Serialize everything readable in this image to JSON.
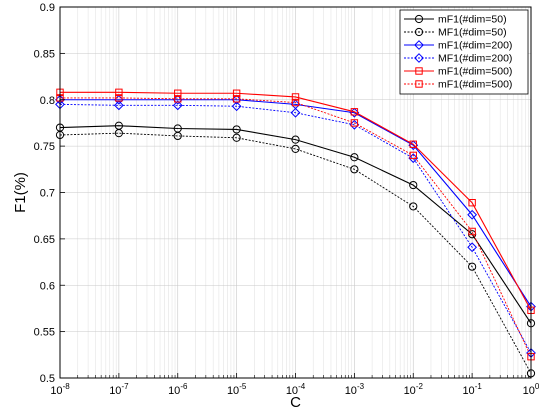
{
  "chart_data": {
    "type": "line",
    "xscale": "log",
    "xlabel": "C",
    "ylabel": "F1(%)",
    "xlim": [
      1e-08,
      1
    ],
    "ylim": [
      0.5,
      0.9
    ],
    "grid": true,
    "legend_position": "top-right",
    "x": [
      1e-08,
      1e-07,
      1e-06,
      1e-05,
      0.0001,
      0.001,
      0.01,
      0.1,
      1
    ],
    "x_tick_labels": [
      {
        "base": "10",
        "exp": "-8"
      },
      {
        "base": "10",
        "exp": "-7"
      },
      {
        "base": "10",
        "exp": "-6"
      },
      {
        "base": "10",
        "exp": "-5"
      },
      {
        "base": "10",
        "exp": "-4"
      },
      {
        "base": "10",
        "exp": "-3"
      },
      {
        "base": "10",
        "exp": "-2"
      },
      {
        "base": "10",
        "exp": "-1"
      },
      {
        "base": "10",
        "exp": "0"
      }
    ],
    "y_ticks": [
      0.5,
      0.55,
      0.6,
      0.65,
      0.7,
      0.75,
      0.8,
      0.85,
      0.9
    ],
    "y_tick_labels": [
      "0.5",
      "0.55",
      "0.6",
      "0.65",
      "0.7",
      "0.75",
      "0.8",
      "0.85",
      "0.9"
    ],
    "series": [
      {
        "name": "mF1(#dim=50)",
        "color": "#000000",
        "dash": "solid",
        "marker": "circle",
        "values": [
          0.77,
          0.772,
          0.769,
          0.768,
          0.757,
          0.738,
          0.708,
          0.655,
          0.559
        ]
      },
      {
        "name": "MF1(#dim=50)",
        "color": "#000000",
        "dash": "dotted",
        "marker": "circle",
        "values": [
          0.762,
          0.764,
          0.761,
          0.759,
          0.747,
          0.725,
          0.685,
          0.62,
          0.505
        ]
      },
      {
        "name": "mF1(#dim=200)",
        "color": "#0000ff",
        "dash": "solid",
        "marker": "diamond",
        "values": [
          0.8,
          0.8,
          0.8,
          0.8,
          0.795,
          0.786,
          0.751,
          0.676,
          0.577
        ]
      },
      {
        "name": "MF1(#dim=200)",
        "color": "#0000ff",
        "dash": "dotted",
        "marker": "diamond",
        "values": [
          0.795,
          0.794,
          0.794,
          0.793,
          0.786,
          0.773,
          0.737,
          0.641,
          0.527
        ]
      },
      {
        "name": "mF1(#dim=500)",
        "color": "#ff0000",
        "dash": "solid",
        "marker": "square",
        "values": [
          0.808,
          0.808,
          0.807,
          0.807,
          0.803,
          0.787,
          0.752,
          0.689,
          0.573
        ]
      },
      {
        "name": "mF1(#dim=500)",
        "color": "#ff0000",
        "dash": "dotted",
        "marker": "square",
        "values": [
          0.802,
          0.802,
          0.801,
          0.801,
          0.797,
          0.775,
          0.74,
          0.658,
          0.523
        ]
      }
    ]
  }
}
